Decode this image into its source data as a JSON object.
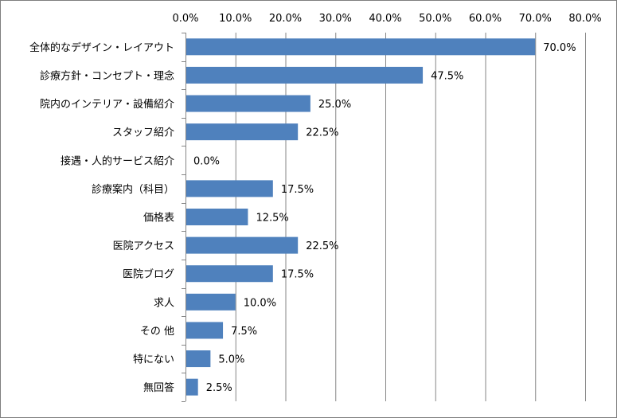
{
  "chart_data": {
    "type": "bar",
    "orientation": "horizontal",
    "categories": [
      "全体的なデザイン・レイアウト",
      "診療方針・コンセプト・理念",
      "院内のインテリア・設備紹介",
      "スタッフ紹介",
      "接遇・人的サービス紹介",
      "診療案内（科目）",
      "価格表",
      "医院アクセス",
      "医院ブログ",
      "求人",
      "その 他",
      "特にない",
      "無回答"
    ],
    "values": [
      70.0,
      47.5,
      25.0,
      22.5,
      0.0,
      17.5,
      12.5,
      22.5,
      17.5,
      10.0,
      7.5,
      5.0,
      2.5
    ],
    "data_labels": [
      "70.0%",
      "47.5%",
      "25.0%",
      "22.5%",
      "0.0%",
      "17.5%",
      "12.5%",
      "22.5%",
      "17.5%",
      "10.0%",
      "7.5%",
      "5.0%",
      "2.5%"
    ],
    "xlim": [
      0,
      80
    ],
    "x_ticks": [
      0,
      10,
      20,
      30,
      40,
      50,
      60,
      70,
      80
    ],
    "x_tick_labels": [
      "0.0%",
      "10.0%",
      "20.0%",
      "30.0%",
      "40.0%",
      "50.0%",
      "60.0%",
      "70.0%",
      "80.0%"
    ],
    "x_axis_position": "top",
    "grid": true,
    "legend": "none",
    "bar_color": "#4f81bd",
    "grid_color": "#868686"
  }
}
